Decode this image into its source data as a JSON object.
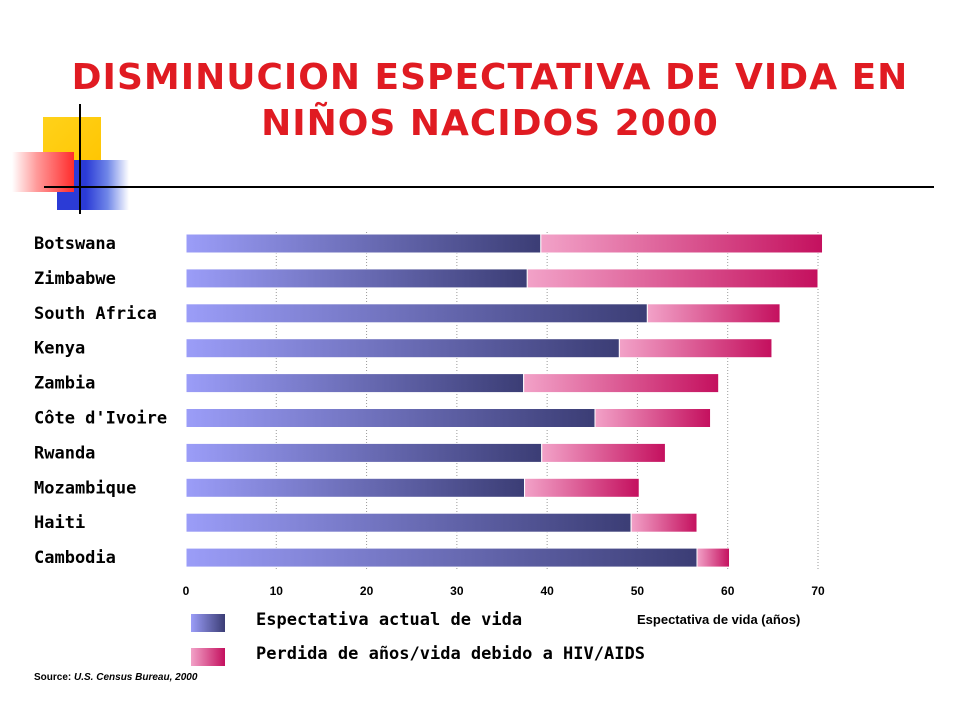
{
  "slide": {
    "title_line1": "DISMINUCION ESPECTATIVA DE VIDA EN",
    "title_line2": "NIÑOS NACIDOS 2000",
    "source_prefix": "Source:",
    "source_text": "U.S. Census Bureau, 2000"
  },
  "colors": {
    "title": "#e01b22",
    "actual_light": "#9b9df8",
    "actual_dark": "#3b3d75",
    "loss_light": "#f2a2c8",
    "loss_dark": "#c4105e",
    "deco_yellow": "#ffcc00",
    "deco_blue": "#2b3bd6",
    "deco_red": "#ff3b3b"
  },
  "chart_data": {
    "type": "bar",
    "orientation": "horizontal",
    "stacked": true,
    "categories": [
      "Botswana",
      "Zimbabwe",
      "South Africa",
      "Kenya",
      "Zambia",
      "Côte d'Ivoire",
      "Rwanda",
      "Mozambique",
      "Haiti",
      "Cambodia"
    ],
    "series": [
      {
        "name": "Espectativa actual de vida",
        "values": [
          39.3,
          37.8,
          51.1,
          48.0,
          37.4,
          45.3,
          39.4,
          37.5,
          49.3,
          56.6
        ]
      },
      {
        "name": "Perdida de años/vida debido a HIV/AIDS",
        "values": [
          31.2,
          32.2,
          14.7,
          16.9,
          21.6,
          12.8,
          13.7,
          12.7,
          7.3,
          3.6
        ]
      }
    ],
    "xlabel": "Espectativa de vida (años)",
    "xlim": [
      0,
      70
    ],
    "xticks": [
      "0",
      "10",
      "20",
      "30",
      "40",
      "50",
      "60",
      "70"
    ],
    "grid": "vertical dotted",
    "legend_position": "bottom"
  }
}
